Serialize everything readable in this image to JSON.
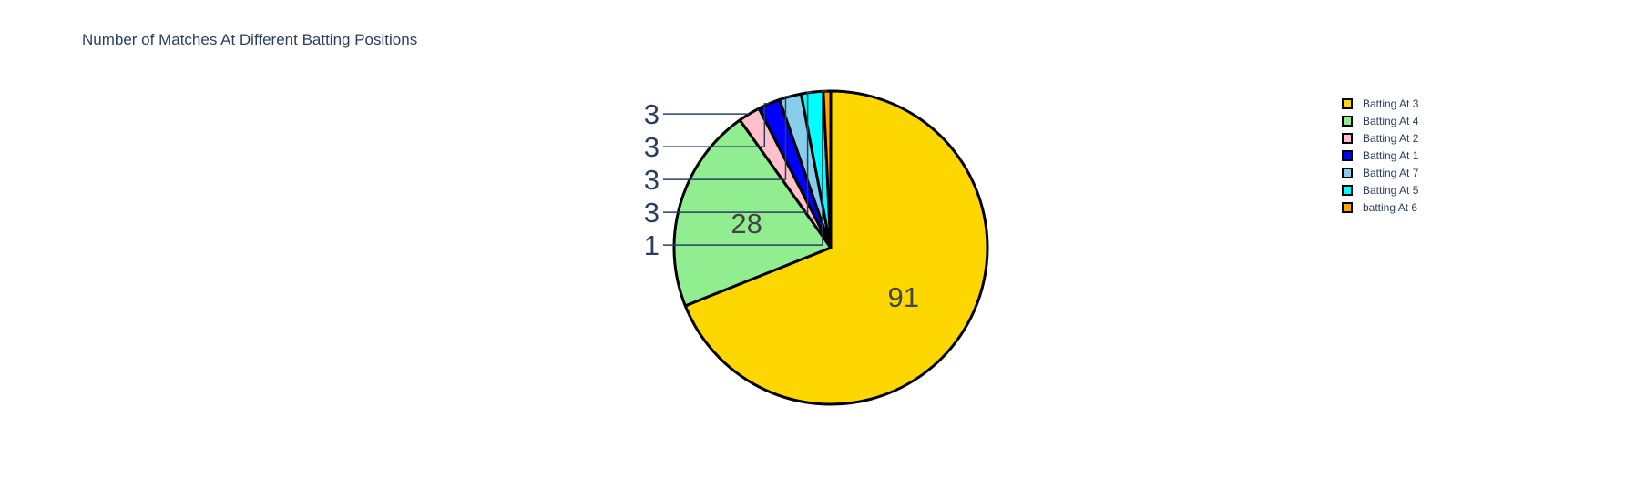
{
  "chart_data": {
    "type": "pie",
    "title": "Number of Matches At Different Batting Positions",
    "legend_position": "top-right",
    "slices": [
      {
        "label": "Batting At 3",
        "value": 91,
        "color": "#FFD700"
      },
      {
        "label": "Batting At 4",
        "value": 28,
        "color": "#90EE90"
      },
      {
        "label": "Batting At 2",
        "value": 3,
        "color": "#FFC0CB"
      },
      {
        "label": "Batting At 1",
        "value": 3,
        "color": "#0000FF"
      },
      {
        "label": "Batting At 7",
        "value": 3,
        "color": "#87CEEB"
      },
      {
        "label": "Batting At 5",
        "value": 3,
        "color": "#00FFFF"
      },
      {
        "label": "batting At 6",
        "value": 1,
        "color": "#FFA500"
      }
    ]
  }
}
